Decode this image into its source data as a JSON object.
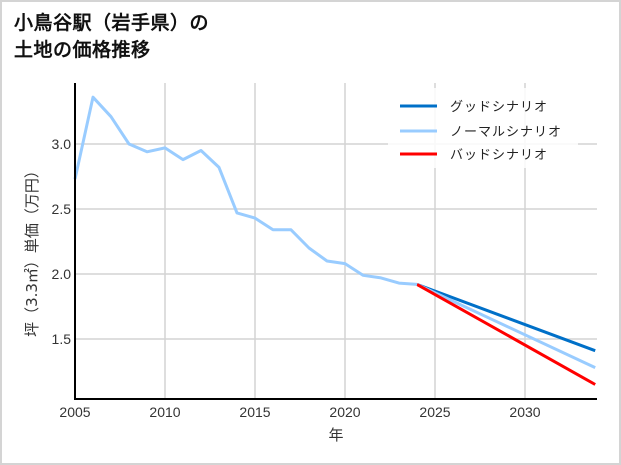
{
  "title": {
    "line1": "小鳥谷駅（岩手県）の",
    "line2": "土地の価格推移"
  },
  "colors": {
    "good": "#0070c8",
    "normal": "#99ccff",
    "bad": "#ff0000",
    "grid": "#d3d3d3",
    "axis": "#000000"
  },
  "chart_data": {
    "type": "line",
    "title": "小鳥谷駅（岩手県）の土地の価格推移",
    "xlabel": "年",
    "ylabel": "坪（3.3㎡）単価（万円）",
    "xlim": [
      2005,
      2033.9
    ],
    "ylim": [
      1.05,
      3.45
    ],
    "xticks": [
      2005,
      2010,
      2015,
      2020,
      2025,
      2030
    ],
    "yticks": [
      1.5,
      2.0,
      2.5,
      3.0
    ],
    "grid": true,
    "legend_position": "upper right",
    "legend": [
      "グッドシナリオ",
      "ノーマルシナリオ",
      "バッドシナリオ"
    ],
    "series": [
      {
        "name": "ノーマルシナリオ (実績)",
        "color": "#99ccff",
        "x": [
          2005,
          2006,
          2007,
          2008,
          2009,
          2010,
          2011,
          2012,
          2013,
          2014,
          2015,
          2016,
          2017,
          2018,
          2019,
          2020,
          2021,
          2022,
          2023,
          2024
        ],
        "values": [
          2.73,
          3.36,
          3.21,
          3.0,
          2.94,
          2.97,
          2.88,
          2.95,
          2.82,
          2.47,
          2.43,
          2.34,
          2.34,
          2.2,
          2.1,
          2.08,
          1.99,
          1.97,
          1.93,
          1.92
        ]
      },
      {
        "name": "グッドシナリオ",
        "color": "#0070c8",
        "x": [
          2024,
          2033.9
        ],
        "values": [
          1.92,
          1.41
        ]
      },
      {
        "name": "ノーマルシナリオ",
        "color": "#99ccff",
        "x": [
          2024,
          2033.9
        ],
        "values": [
          1.92,
          1.28
        ]
      },
      {
        "name": "バッドシナリオ",
        "color": "#ff0000",
        "x": [
          2024,
          2033.9
        ],
        "values": [
          1.92,
          1.15
        ]
      }
    ]
  },
  "axes": {
    "x_label": "年",
    "y_label": "坪（3.3㎡）単価（万円）",
    "x_ticks": [
      "2005",
      "2010",
      "2015",
      "2020",
      "2025",
      "2030"
    ],
    "y_ticks": [
      "3.0",
      "2.5",
      "2.0",
      "1.5"
    ]
  },
  "legend": {
    "good": "グッドシナリオ",
    "normal": "ノーマルシナリオ",
    "bad": "バッドシナリオ"
  }
}
